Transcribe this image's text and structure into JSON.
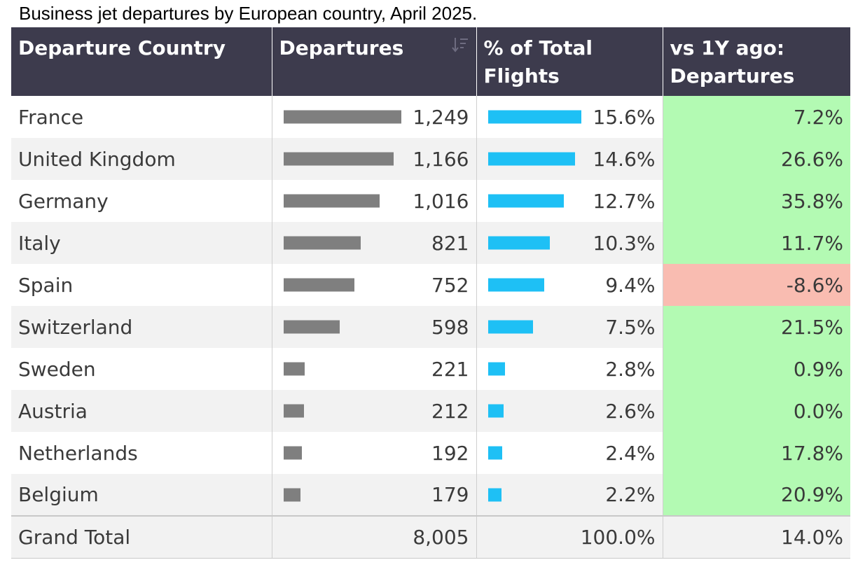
{
  "caption": "Business jet departures by European country, April 2025.",
  "headers": {
    "country": "Departure Country",
    "departures": "Departures",
    "pct": "% of Total Flights",
    "yoy": "vs 1Y ago: Departures"
  },
  "sort_icon": "sort-descending-icon",
  "colors": {
    "header_bg": "#3d3b4d",
    "departures_bar": "#7f7f7f",
    "pct_bar": "#1ec0f5",
    "positive_bg": "#b3fab3",
    "negative_bg": "#f9bcb1"
  },
  "rows": [
    {
      "country": "France",
      "departures": "1,249",
      "departures_value": 1249,
      "pct": "15.6%",
      "pct_value": 15.6,
      "yoy": "7.2%",
      "yoy_value": 7.2
    },
    {
      "country": "United Kingdom",
      "departures": "1,166",
      "departures_value": 1166,
      "pct": "14.6%",
      "pct_value": 14.6,
      "yoy": "26.6%",
      "yoy_value": 26.6
    },
    {
      "country": "Germany",
      "departures": "1,016",
      "departures_value": 1016,
      "pct": "12.7%",
      "pct_value": 12.7,
      "yoy": "35.8%",
      "yoy_value": 35.8
    },
    {
      "country": "Italy",
      "departures": "821",
      "departures_value": 821,
      "pct": "10.3%",
      "pct_value": 10.3,
      "yoy": "11.7%",
      "yoy_value": 11.7
    },
    {
      "country": "Spain",
      "departures": "752",
      "departures_value": 752,
      "pct": "9.4%",
      "pct_value": 9.4,
      "yoy": "-8.6%",
      "yoy_value": -8.6
    },
    {
      "country": "Switzerland",
      "departures": "598",
      "departures_value": 598,
      "pct": "7.5%",
      "pct_value": 7.5,
      "yoy": "21.5%",
      "yoy_value": 21.5
    },
    {
      "country": "Sweden",
      "departures": "221",
      "departures_value": 221,
      "pct": "2.8%",
      "pct_value": 2.8,
      "yoy": "0.9%",
      "yoy_value": 0.9
    },
    {
      "country": "Austria",
      "departures": "212",
      "departures_value": 212,
      "pct": "2.6%",
      "pct_value": 2.6,
      "yoy": "0.0%",
      "yoy_value": 0.0
    },
    {
      "country": "Netherlands",
      "departures": "192",
      "departures_value": 192,
      "pct": "2.4%",
      "pct_value": 2.4,
      "yoy": "17.8%",
      "yoy_value": 17.8
    },
    {
      "country": "Belgium",
      "departures": "179",
      "departures_value": 179,
      "pct": "2.2%",
      "pct_value": 2.2,
      "yoy": "20.9%",
      "yoy_value": 20.9
    }
  ],
  "total": {
    "label": "Grand Total",
    "departures": "8,005",
    "pct": "100.0%",
    "yoy": "14.0%"
  }
}
